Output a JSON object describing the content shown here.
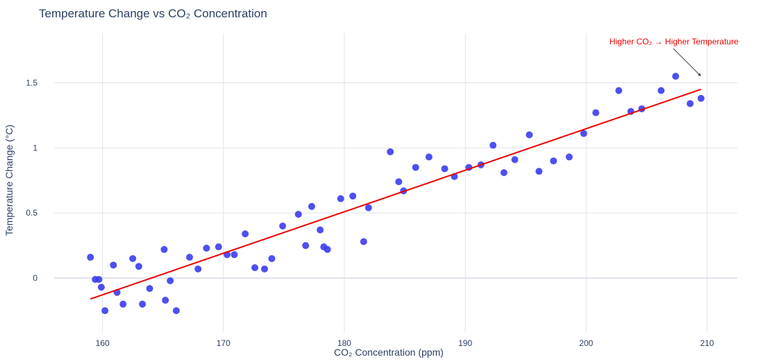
{
  "chart_data": {
    "type": "scatter",
    "title": "Temperature Change vs CO₂ Concentration",
    "xlabel": "CO₂ Concentration (ppm)",
    "ylabel": "Temperature Change (°C)",
    "xlim": [
      156,
      212.5
    ],
    "ylim": [
      -0.42,
      1.88
    ],
    "x_ticks": [
      160,
      170,
      180,
      190,
      200,
      210
    ],
    "x_tick_labels": [
      "160",
      "170",
      "180",
      "190",
      "200",
      "210"
    ],
    "y_ticks": [
      0,
      0.5,
      1,
      1.5
    ],
    "y_tick_labels": [
      "0",
      "0.5",
      "1",
      "1.5"
    ],
    "grid": true,
    "marker_color": "#3c3cf0",
    "trendline_color": "#ee0000",
    "series": [
      {
        "mode": "markers",
        "x": [
          159.0,
          159.4,
          159.7,
          159.9,
          160.2,
          160.9,
          161.2,
          161.7,
          162.5,
          163.0,
          163.3,
          163.9,
          165.1,
          165.2,
          165.6,
          166.1,
          167.2,
          167.9,
          168.6,
          169.6,
          170.3,
          170.9,
          171.8,
          172.6,
          173.4,
          174.0,
          174.9,
          176.2,
          176.8,
          177.3,
          178.0,
          178.3,
          178.6,
          179.7,
          180.7,
          181.6,
          182.0,
          183.8,
          184.5,
          184.9,
          185.9,
          187.0,
          188.3,
          189.1,
          190.3,
          191.3,
          192.3,
          193.2,
          194.1,
          195.3,
          196.1,
          197.3,
          198.6,
          199.8,
          200.8,
          202.7,
          203.7,
          204.6,
          206.2,
          207.4,
          208.6,
          209.5
        ],
        "y": [
          0.16,
          -0.01,
          -0.01,
          -0.07,
          -0.25,
          0.1,
          -0.11,
          -0.2,
          0.15,
          0.09,
          -0.2,
          -0.08,
          0.22,
          -0.17,
          -0.02,
          -0.25,
          0.16,
          0.07,
          0.23,
          0.24,
          0.18,
          0.18,
          0.34,
          0.08,
          0.07,
          0.15,
          0.4,
          0.49,
          0.25,
          0.55,
          0.37,
          0.24,
          0.22,
          0.61,
          0.63,
          0.28,
          0.54,
          0.97,
          0.74,
          0.67,
          0.85,
          0.93,
          0.84,
          0.78,
          0.85,
          0.87,
          1.02,
          0.81,
          0.91,
          1.1,
          0.82,
          0.9,
          0.93,
          1.11,
          1.27,
          1.44,
          1.28,
          1.3,
          1.44,
          1.55,
          1.34,
          1.38
        ]
      },
      {
        "mode": "line",
        "x": [
          159.0,
          209.5
        ],
        "y": [
          -0.16,
          1.45
        ]
      }
    ],
    "annotations": [
      {
        "text": "Higher CO₂ → Higher Temperature",
        "x": 209.5,
        "y": 1.55,
        "color": "#ee0000",
        "arrow": true
      }
    ]
  }
}
